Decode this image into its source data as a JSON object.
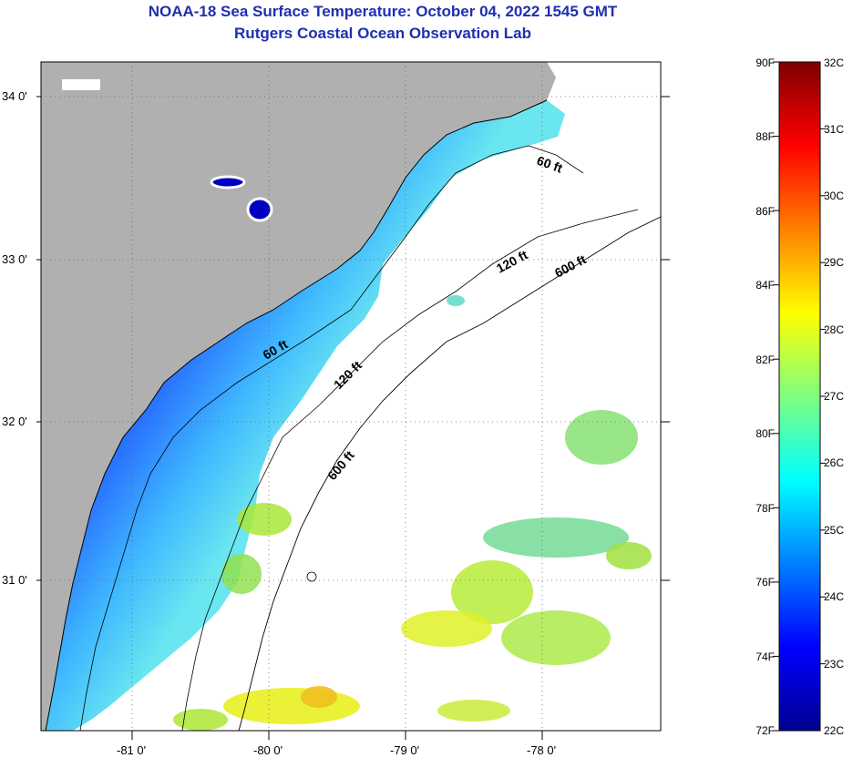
{
  "header": {
    "title": "NOAA-18 Sea Surface Temperature:  October 04, 2022 1545 GMT",
    "subtitle": "Rutgers Coastal Ocean Observation Lab"
  },
  "map": {
    "lat_labels": [
      "34 0'",
      "33 0'",
      "32 0'",
      "31 0'"
    ],
    "lon_labels": [
      "-81 0'",
      "-80 0'",
      "-79 0'",
      "-78 0'"
    ],
    "contours": [
      "60 ft",
      "120 ft",
      "600 ft",
      "60 ft",
      "120 ft",
      "600 ft"
    ],
    "colors": {
      "land": "#b0b0b0",
      "ocean_nodata": "#ffffff",
      "border": "#000000"
    }
  },
  "colorbar": {
    "fahrenheit": [
      "90F",
      "88F",
      "86F",
      "84F",
      "82F",
      "80F",
      "78F",
      "76F",
      "74F",
      "72F"
    ],
    "celsius": [
      "32C",
      "31C",
      "30C",
      "29C",
      "28C",
      "27C",
      "26C",
      "25C",
      "24C",
      "23C",
      "22C"
    ],
    "range_f": [
      72,
      90
    ],
    "range_c": [
      22,
      32
    ],
    "colormap": "jet"
  }
}
